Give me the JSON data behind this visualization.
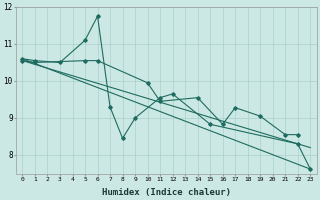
{
  "bg_color": "#cce8e4",
  "grid_color": "#aad0cc",
  "line_color": "#1e6b60",
  "xlabel": "Humidex (Indice chaleur)",
  "xlim": [
    -0.5,
    23.5
  ],
  "ylim": [
    7.5,
    12.0
  ],
  "yticks": [
    8,
    9,
    10,
    11,
    12
  ],
  "xticks": [
    0,
    1,
    2,
    3,
    4,
    5,
    6,
    7,
    8,
    9,
    10,
    11,
    12,
    13,
    14,
    15,
    16,
    17,
    18,
    19,
    20,
    21,
    22,
    23
  ],
  "s1x": [
    0,
    1,
    3,
    5,
    6,
    7,
    8,
    9,
    11,
    12,
    15,
    22,
    23
  ],
  "s1y": [
    10.6,
    10.55,
    10.5,
    11.1,
    11.75,
    9.3,
    8.45,
    9.0,
    9.55,
    9.65,
    8.83,
    8.3,
    7.62
  ],
  "s2x": [
    0,
    1,
    5,
    6,
    10,
    11,
    14,
    16,
    17,
    19,
    21,
    22
  ],
  "s2y": [
    10.55,
    10.5,
    10.55,
    10.55,
    9.95,
    9.45,
    9.55,
    8.83,
    9.28,
    9.05,
    8.55,
    8.55
  ],
  "tl1x": [
    0,
    23
  ],
  "tl1y": [
    10.6,
    7.62
  ],
  "tl2x": [
    0,
    23
  ],
  "tl2y": [
    10.55,
    8.2
  ]
}
